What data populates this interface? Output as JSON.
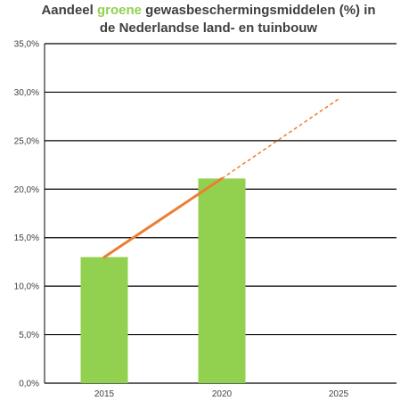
{
  "title": {
    "prefix": "Aandeel ",
    "highlight": "groene",
    "suffix": " gewasbeschermingsmiddelen (%) in",
    "line2": "de Nederlandse land- en tuinbouw"
  },
  "colors": {
    "bar": "#92d050",
    "trend": "#ed7d31",
    "highlight": "#92d050",
    "grid": "#000000",
    "text": "#404040"
  },
  "chart_data": {
    "type": "bar",
    "categories": [
      "2015",
      "2020",
      "2025"
    ],
    "values": [
      13.0,
      21.1,
      null
    ],
    "ylim": [
      0,
      35
    ],
    "yticks": [
      "0,0%",
      "5,0%",
      "10,0%",
      "15,0%",
      "20,0%",
      "25,0%",
      "30,0%",
      "35,0%"
    ],
    "grid": true,
    "trend_line": {
      "solid": [
        {
          "x": "2015",
          "y": 13.0
        },
        {
          "x": "2020",
          "y": 21.1
        }
      ],
      "dashed": [
        {
          "x": "2020",
          "y": 21.1
        },
        {
          "x": "2025",
          "y": 29.3
        }
      ]
    }
  }
}
